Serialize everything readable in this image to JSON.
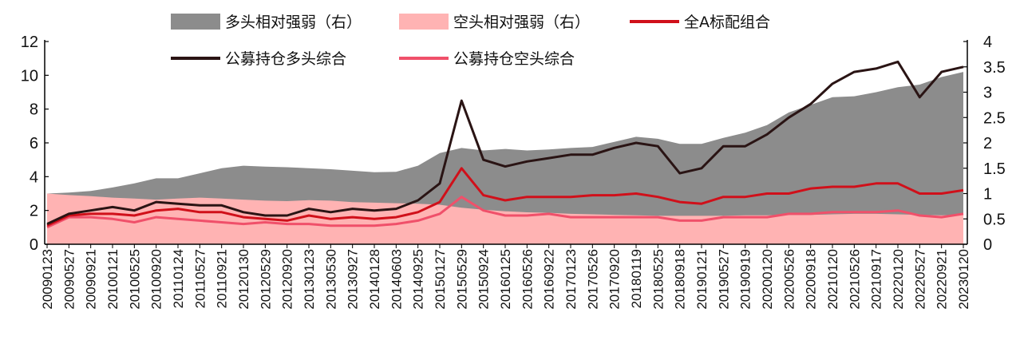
{
  "chart_data": {
    "type": "line",
    "title": "",
    "xlabel": "",
    "ylabel": "",
    "y2label": "",
    "ylim": [
      0,
      12
    ],
    "y2lim": [
      0,
      4
    ],
    "yticks": [
      "0",
      "2",
      "4",
      "6",
      "8",
      "10",
      "12"
    ],
    "y2ticks": [
      "0",
      "0.5",
      "1",
      "1.5",
      "2",
      "2.5",
      "3",
      "3.5",
      "4"
    ],
    "grid": false,
    "legend": {
      "position": "top",
      "items": [
        {
          "label": "多头相对强弱（右）",
          "kind": "area",
          "color": "#8c8c8c"
        },
        {
          "label": "空头相对强弱（右）",
          "kind": "area",
          "color": "#ffb3b3"
        },
        {
          "label": "全A标配组合",
          "kind": "line",
          "color": "#d0101a"
        },
        {
          "label": "公募持仓多头综合",
          "kind": "line",
          "color": "#2a1414"
        },
        {
          "label": "公募持仓空头综合",
          "kind": "line",
          "color": "#f0506a"
        }
      ]
    },
    "x": [
      "20090123",
      "20090527",
      "20090921",
      "20100121",
      "20100525",
      "20100920",
      "20110124",
      "20110527",
      "20110921",
      "20120130",
      "20120529",
      "20120920",
      "20130123",
      "20130530",
      "20130927",
      "20140128",
      "20140603",
      "20140925",
      "20150127",
      "20150529",
      "20150924",
      "20160125",
      "20160526",
      "20160922",
      "20170123",
      "20170526",
      "20170920",
      "20180119",
      "20180525",
      "20180918",
      "20190121",
      "20190527",
      "20190919",
      "20200120",
      "20200526",
      "20200918",
      "20210120",
      "20210526",
      "20210917",
      "20220120",
      "20220527",
      "20220921",
      "20230120"
    ],
    "series": [
      {
        "name": "多头相对强弱（右）",
        "axis": "right",
        "type": "area",
        "color": "#8c8c8c",
        "values": [
          1.0,
          1.02,
          1.05,
          1.12,
          1.2,
          1.3,
          1.3,
          1.4,
          1.5,
          1.55,
          1.53,
          1.52,
          1.5,
          1.48,
          1.45,
          1.42,
          1.43,
          1.55,
          1.8,
          1.9,
          1.85,
          1.88,
          1.85,
          1.87,
          1.9,
          1.92,
          2.02,
          2.12,
          2.08,
          1.98,
          1.98,
          2.1,
          2.2,
          2.35,
          2.6,
          2.75,
          2.9,
          2.92,
          3.0,
          3.1,
          3.15,
          3.3,
          3.4
        ]
      },
      {
        "name": "空头相对强弱（右）",
        "axis": "right",
        "type": "area",
        "color": "#ffb3b3",
        "values": [
          1.0,
          0.97,
          0.95,
          0.92,
          0.9,
          0.88,
          0.9,
          0.92,
          0.9,
          0.88,
          0.86,
          0.85,
          0.87,
          0.86,
          0.83,
          0.82,
          0.81,
          0.8,
          0.78,
          0.72,
          0.68,
          0.65,
          0.63,
          0.62,
          0.6,
          0.59,
          0.58,
          0.57,
          0.56,
          0.56,
          0.56,
          0.56,
          0.57,
          0.57,
          0.58,
          0.58,
          0.59,
          0.6,
          0.6,
          0.59,
          0.58,
          0.57,
          0.58
        ]
      },
      {
        "name": "全A标配组合",
        "axis": "left",
        "type": "line",
        "color": "#d0101a",
        "values": [
          1.1,
          1.7,
          1.8,
          1.8,
          1.7,
          2.0,
          2.1,
          1.9,
          1.9,
          1.6,
          1.5,
          1.4,
          1.7,
          1.5,
          1.6,
          1.5,
          1.6,
          1.9,
          2.5,
          4.5,
          2.9,
          2.6,
          2.8,
          2.8,
          2.8,
          2.9,
          2.9,
          3.0,
          2.8,
          2.5,
          2.4,
          2.8,
          2.8,
          3.0,
          3.0,
          3.3,
          3.4,
          3.4,
          3.6,
          3.6,
          3.0,
          3.0,
          3.2
        ]
      },
      {
        "name": "公募持仓多头综合",
        "axis": "left",
        "type": "line",
        "color": "#2a1414",
        "values": [
          1.2,
          1.8,
          2.0,
          2.2,
          2.0,
          2.5,
          2.4,
          2.3,
          2.3,
          1.9,
          1.7,
          1.7,
          2.1,
          1.9,
          2.1,
          2.0,
          2.1,
          2.6,
          3.6,
          8.5,
          5.0,
          4.6,
          4.9,
          5.1,
          5.3,
          5.3,
          5.7,
          6.0,
          5.8,
          4.2,
          4.5,
          5.8,
          5.8,
          6.5,
          7.5,
          8.3,
          9.5,
          10.2,
          10.4,
          10.8,
          8.7,
          10.2,
          10.5
        ]
      },
      {
        "name": "公募持仓空头综合",
        "axis": "left",
        "type": "line",
        "color": "#f0506a",
        "values": [
          1.0,
          1.6,
          1.6,
          1.5,
          1.3,
          1.6,
          1.5,
          1.4,
          1.3,
          1.2,
          1.3,
          1.2,
          1.2,
          1.1,
          1.1,
          1.1,
          1.2,
          1.4,
          1.8,
          2.8,
          2.0,
          1.7,
          1.7,
          1.8,
          1.6,
          1.6,
          1.6,
          1.6,
          1.6,
          1.4,
          1.4,
          1.6,
          1.6,
          1.6,
          1.8,
          1.8,
          1.9,
          1.9,
          1.9,
          2.0,
          1.7,
          1.6,
          1.8
        ]
      }
    ]
  }
}
